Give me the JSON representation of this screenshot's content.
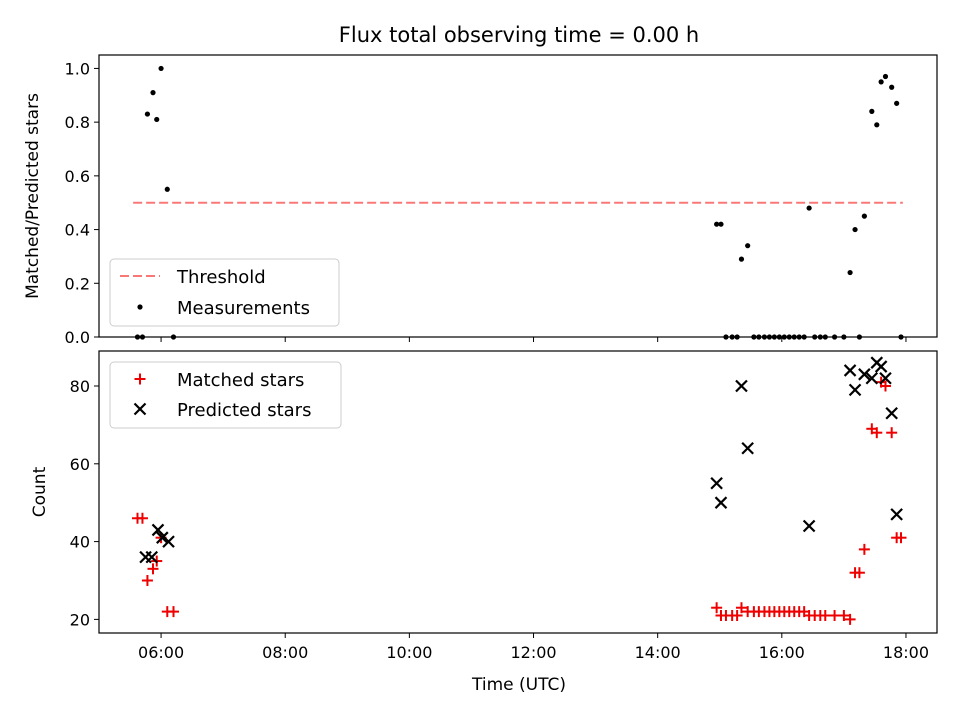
{
  "chart_data": {
    "title": "Flux total observing time = 0.00 h",
    "xlabel": "Time (UTC)",
    "xticks": [
      "06:00",
      "08:00",
      "10:00",
      "12:00",
      "14:00",
      "16:00",
      "18:00"
    ],
    "xlim_hours": [
      5.0,
      18.5
    ],
    "top": {
      "type": "scatter",
      "ylabel": "Matched/Predicted stars",
      "ylim": [
        0,
        1.05
      ],
      "yticks": [
        "0.0",
        "0.2",
        "0.4",
        "0.6",
        "0.8",
        "1.0"
      ],
      "threshold": 0.5,
      "legend": [
        "Threshold",
        "Measurements"
      ],
      "colors": {
        "threshold": "#f87878",
        "points": "#000000"
      },
      "measurements": [
        [
          5.62,
          0.0
        ],
        [
          5.7,
          0.0
        ],
        [
          5.78,
          0.83
        ],
        [
          5.87,
          0.91
        ],
        [
          5.93,
          0.81
        ],
        [
          6.0,
          1.0
        ],
        [
          6.1,
          0.55
        ],
        [
          6.2,
          0.0
        ],
        [
          14.95,
          0.42
        ],
        [
          15.02,
          0.42
        ],
        [
          15.1,
          0.0
        ],
        [
          15.2,
          0.0
        ],
        [
          15.28,
          0.0
        ],
        [
          15.35,
          0.29
        ],
        [
          15.45,
          0.34
        ],
        [
          15.55,
          0.0
        ],
        [
          15.63,
          0.0
        ],
        [
          15.72,
          0.0
        ],
        [
          15.8,
          0.0
        ],
        [
          15.88,
          0.0
        ],
        [
          15.96,
          0.0
        ],
        [
          16.04,
          0.0
        ],
        [
          16.12,
          0.0
        ],
        [
          16.2,
          0.0
        ],
        [
          16.28,
          0.0
        ],
        [
          16.36,
          0.0
        ],
        [
          16.44,
          0.48
        ],
        [
          16.53,
          0.0
        ],
        [
          16.62,
          0.0
        ],
        [
          16.7,
          0.0
        ],
        [
          16.85,
          0.0
        ],
        [
          17.0,
          0.0
        ],
        [
          17.1,
          0.24
        ],
        [
          17.18,
          0.4
        ],
        [
          17.25,
          0.0
        ],
        [
          17.33,
          0.45
        ],
        [
          17.45,
          0.84
        ],
        [
          17.53,
          0.79
        ],
        [
          17.6,
          0.95
        ],
        [
          17.67,
          0.97
        ],
        [
          17.77,
          0.93
        ],
        [
          17.85,
          0.87
        ],
        [
          17.92,
          0.0
        ]
      ]
    },
    "bottom": {
      "type": "scatter",
      "ylabel": "Count",
      "ylim": [
        16.5,
        89
      ],
      "yticks": [
        "20",
        "40",
        "60",
        "80"
      ],
      "legend": [
        "Matched stars",
        "Predicted stars"
      ],
      "colors": {
        "matched": "#ee0000",
        "predicted": "#000000"
      },
      "matched": [
        [
          5.62,
          46
        ],
        [
          5.7,
          46
        ],
        [
          5.78,
          30
        ],
        [
          5.87,
          33
        ],
        [
          5.93,
          35
        ],
        [
          6.0,
          41
        ],
        [
          6.1,
          22
        ],
        [
          6.2,
          22
        ],
        [
          14.95,
          23
        ],
        [
          15.02,
          21
        ],
        [
          15.1,
          21
        ],
        [
          15.2,
          21
        ],
        [
          15.28,
          21
        ],
        [
          15.35,
          23
        ],
        [
          15.45,
          22
        ],
        [
          15.55,
          22
        ],
        [
          15.63,
          22
        ],
        [
          15.72,
          22
        ],
        [
          15.8,
          22
        ],
        [
          15.88,
          22
        ],
        [
          15.96,
          22
        ],
        [
          16.04,
          22
        ],
        [
          16.12,
          22
        ],
        [
          16.2,
          22
        ],
        [
          16.28,
          22
        ],
        [
          16.36,
          22
        ],
        [
          16.44,
          21
        ],
        [
          16.53,
          21
        ],
        [
          16.62,
          21
        ],
        [
          16.7,
          21
        ],
        [
          16.85,
          21
        ],
        [
          17.0,
          21
        ],
        [
          17.1,
          20
        ],
        [
          17.18,
          32
        ],
        [
          17.25,
          32
        ],
        [
          17.33,
          38
        ],
        [
          17.45,
          69
        ],
        [
          17.53,
          68
        ],
        [
          17.6,
          81
        ],
        [
          17.67,
          80
        ],
        [
          17.77,
          68
        ],
        [
          17.85,
          41
        ],
        [
          17.92,
          41
        ]
      ],
      "predicted": [
        [
          5.75,
          36
        ],
        [
          5.85,
          36
        ],
        [
          5.95,
          43
        ],
        [
          6.02,
          41
        ],
        [
          6.12,
          40
        ],
        [
          14.95,
          55
        ],
        [
          15.02,
          50
        ],
        [
          15.35,
          80
        ],
        [
          15.45,
          64
        ],
        [
          16.44,
          44
        ],
        [
          17.1,
          84
        ],
        [
          17.18,
          79
        ],
        [
          17.33,
          83
        ],
        [
          17.45,
          82
        ],
        [
          17.53,
          86
        ],
        [
          17.6,
          85
        ],
        [
          17.67,
          82
        ],
        [
          17.77,
          73
        ],
        [
          17.85,
          47
        ]
      ]
    }
  }
}
